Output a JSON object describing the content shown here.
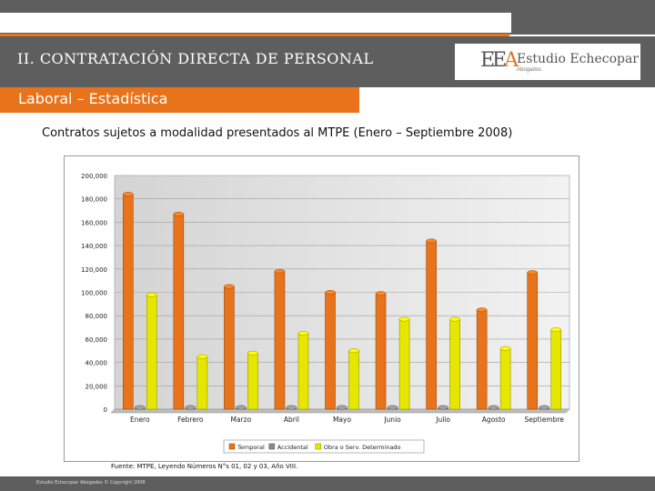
{
  "header": {
    "title": "II. CONTRATACIÓN DIRECTA DE PERSONAL",
    "logo_mark": "EEA",
    "logo_name": "Estudio Echecopar",
    "logo_sub": "Abogados"
  },
  "section": {
    "label": "Laboral – Estadística"
  },
  "subtitle": "Contratos sujetos a modalidad presentados al MTPE (Enero – Septiembre 2008)",
  "source_note": "Fuente: MTPE, Leyendo Números N°s 01, 02 y 03, Año VIII.",
  "footer": {
    "text": "Estudio Echecopar Abogados © Copyright 2008"
  },
  "colors": {
    "brand_orange": "#e8731a",
    "header_gray": "#5e5e5e"
  },
  "chart_data": {
    "type": "bar",
    "title": "",
    "xlabel": "",
    "ylabel": "",
    "ylim": [
      0,
      200000
    ],
    "yticks": [
      "200,000",
      "180,000",
      "160,000",
      "140,000",
      "120,000",
      "100,000",
      "80,000",
      "60,000",
      "40,000",
      "20,000",
      "0"
    ],
    "categories": [
      "Enero",
      "Febrero",
      "Marzo",
      "Abril",
      "Mayo",
      "Junio",
      "Julio",
      "Agosto",
      "Septiembre"
    ],
    "series": [
      {
        "name": "Temporal",
        "color": "#e8731a",
        "values": [
          184000,
          167000,
          105000,
          118000,
          100000,
          99000,
          144000,
          85000,
          117000
        ]
      },
      {
        "name": "Accidental",
        "color": "#8a8a8a",
        "values": [
          1500,
          1500,
          1500,
          1500,
          1500,
          1500,
          1500,
          1500,
          1500
        ]
      },
      {
        "name": "Obra o Serv. Determinado",
        "color": "#e6e600",
        "values": [
          98000,
          45000,
          48000,
          65000,
          50000,
          77000,
          77000,
          52000,
          68000
        ]
      }
    ],
    "legend_position": "bottom",
    "grid": true
  }
}
